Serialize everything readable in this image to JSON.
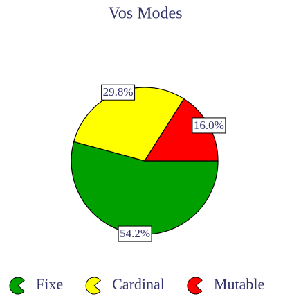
{
  "chart_data": {
    "type": "pie",
    "title": "Vos Modes",
    "categories": [
      "Fixe",
      "Cardinal",
      "Mutable"
    ],
    "values": [
      54.2,
      29.8,
      16.0
    ],
    "value_labels": [
      "54.2%",
      "29.8%",
      "16.0%"
    ],
    "colors": [
      "#00a000",
      "#ffff00",
      "#ff0000"
    ]
  }
}
